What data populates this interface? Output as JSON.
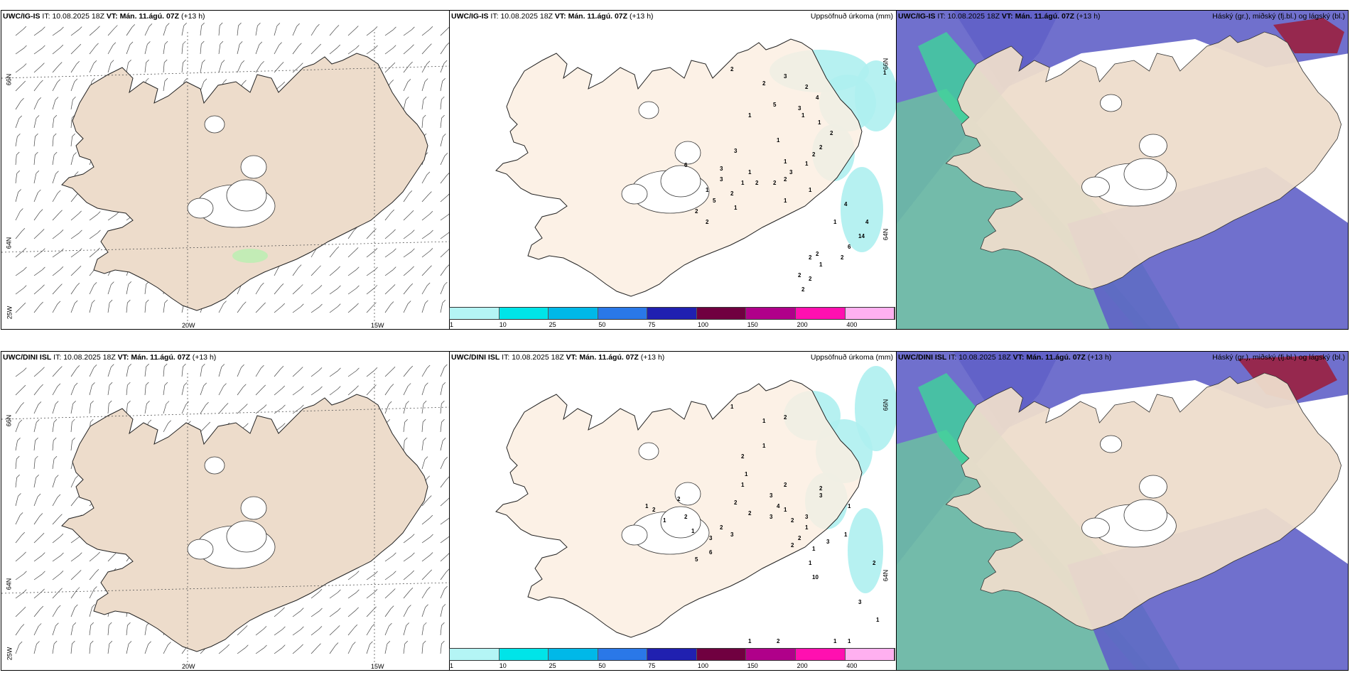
{
  "colors": {
    "land": "#eddccb",
    "land_light": "#fcefe2",
    "sea_green": "#6cb7a5",
    "cloud_blue": "#6060c8",
    "precip_cyan": "#aef0f0",
    "high_cloud_red": "#9a2040"
  },
  "rows": [
    {
      "model": "UWC/IG-IS",
      "it_label": "IT:",
      "it_value": "10.08.2025 18Z",
      "vt_label": "VT:",
      "vt_value": "Mán. 11.ágú. 07Z",
      "lead": "(+13 h)"
    },
    {
      "model": "UWC/DINI ISL",
      "it_label": "IT:",
      "it_value": "10.08.2025 18Z",
      "vt_label": "VT:",
      "vt_value": "Mán. 11.ágú. 07Z",
      "lead": "(+13 h)"
    }
  ],
  "precip_title": "Uppsöfnuð úrkoma (mm)",
  "cloud_title": "Háský (gr.), miðský (fj.bl.) og lágský (bl.)",
  "grid_labels": {
    "lat_66": "66N",
    "lat_64": "64N",
    "lon_25": "25W",
    "lon_20": "20W",
    "lon_15": "15W"
  },
  "colorbar": {
    "colors": [
      "#b4f5f5",
      "#00e4e8",
      "#00b8e8",
      "#2a78e8",
      "#2020b0",
      "#700040",
      "#b0008a",
      "#ff10b0",
      "#ffb0f0"
    ],
    "ticks": [
      "1",
      "10",
      "25",
      "50",
      "75",
      "100",
      "150",
      "200",
      "400"
    ]
  },
  "precip_values_top": [
    "2",
    "2",
    "3",
    "1",
    "3",
    "5",
    "2",
    "1",
    "1",
    "1",
    "4",
    "3",
    "1",
    "2",
    "2",
    "2",
    "1",
    "3",
    "2",
    "2",
    "1",
    "1",
    "3",
    "2",
    "1",
    "2",
    "2",
    "5",
    "6",
    "3",
    "1",
    "2",
    "1",
    "1",
    "4",
    "4",
    "1",
    "14",
    "2",
    "2",
    "1",
    "6",
    "2",
    "2",
    "2",
    "2",
    "1"
  ],
  "precip_values_bottom": [
    "1",
    "1",
    "2",
    "1",
    "2",
    "1",
    "1",
    "2",
    "3",
    "4",
    "3",
    "1",
    "2",
    "3",
    "1",
    "2",
    "2",
    "1",
    "1",
    "3",
    "1",
    "1",
    "3",
    "2",
    "2",
    "2",
    "2",
    "3",
    "1",
    "3",
    "5",
    "6",
    "2",
    "1",
    "1",
    "2",
    "2",
    "10",
    "2",
    "1",
    "3",
    "1",
    "1",
    "2",
    "1"
  ]
}
